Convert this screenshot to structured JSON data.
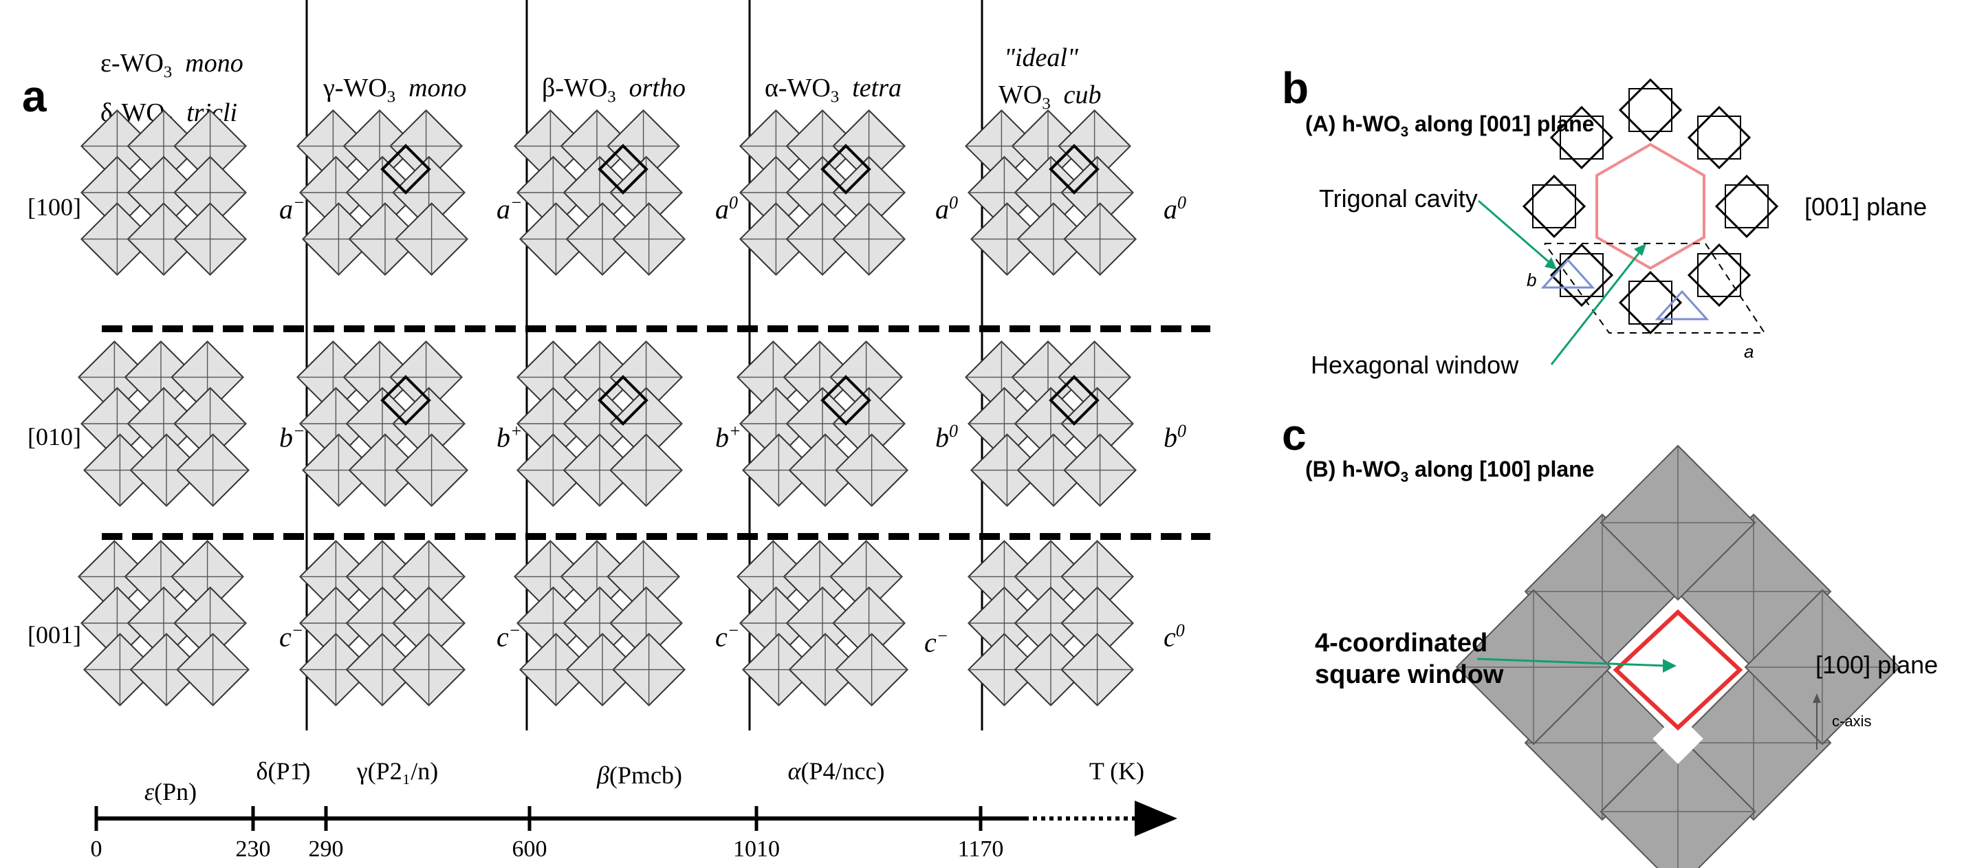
{
  "panel_a": {
    "letter": "a",
    "columns": [
      {
        "lines": [
          {
            "name": "ε-WO",
            "sub": "3",
            "sys": "mono"
          },
          {
            "name": "δ-WO",
            "sub": "3",
            "sys": "tricli"
          }
        ],
        "tilts": [
          "a",
          "b",
          "c"
        ],
        "tilt_sup": [
          "−",
          "−",
          "−"
        ]
      },
      {
        "lines": [
          {
            "name": "γ-WO",
            "sub": "3",
            "sys": "mono"
          }
        ],
        "tilts": [
          "a",
          "b",
          "c"
        ],
        "tilt_sup": [
          "−",
          "+",
          "−"
        ]
      },
      {
        "lines": [
          {
            "name": "β-WO",
            "sub": "3",
            "sys": "ortho"
          }
        ],
        "tilts": [
          "a",
          "b",
          "c"
        ],
        "tilt_sup": [
          "0",
          "+",
          "−"
        ]
      },
      {
        "lines": [
          {
            "name": "α-WO",
            "sub": "3",
            "sys": "tetra"
          }
        ],
        "tilts": [
          "a",
          "b",
          "c"
        ],
        "tilt_sup": [
          "0",
          "0",
          "−"
        ]
      },
      {
        "pre": "\"ideal\"",
        "lines": [
          {
            "name": "WO",
            "sub": "3",
            "sys": "cub"
          }
        ],
        "tilts": [
          "a",
          "b",
          "c"
        ],
        "tilt_sup": [
          "0",
          "0",
          "0"
        ]
      }
    ],
    "rows": [
      "[100]",
      "[010]",
      "[001]"
    ],
    "timeline": {
      "ticks": [
        "0",
        "230",
        "290",
        "600",
        "1010",
        "1170"
      ],
      "ranges": [
        {
          "sym": "ε",
          "group": "(Pn)"
        },
        {
          "sym": "δ",
          "group": "(P1̄)"
        },
        {
          "sym": "γ",
          "group": "(P2₁/n)"
        },
        {
          "sym": "β",
          "group": "(Pmcb)"
        },
        {
          "sym": "α",
          "group": "(P4/ncc)"
        }
      ],
      "axis_label": "T (K)"
    }
  },
  "panel_b": {
    "letter": "b",
    "title": "(A) h-WO",
    "title_sub": "3",
    "title_rest": " along [001] plane",
    "trigonal": "Trigonal cavity",
    "hexagonal": "Hexagonal  window",
    "plane": "[001] plane",
    "axis_a": "a",
    "axis_b": "b",
    "colors": {
      "hexagon": "#f08c8c",
      "triangle": "#7a8fd0",
      "arrow": "#10a070"
    }
  },
  "panel_c": {
    "letter": "c",
    "title": "(B) h-WO",
    "title_sub": "3",
    "title_rest": " along [100] plane",
    "label_line1": "4-coordinated",
    "label_line2": "square  window",
    "plane": "[100] plane",
    "caxis": "c-axis",
    "colors": {
      "square": "#e83030",
      "octa": "#a6a6a6",
      "arrow": "#10a070"
    }
  }
}
